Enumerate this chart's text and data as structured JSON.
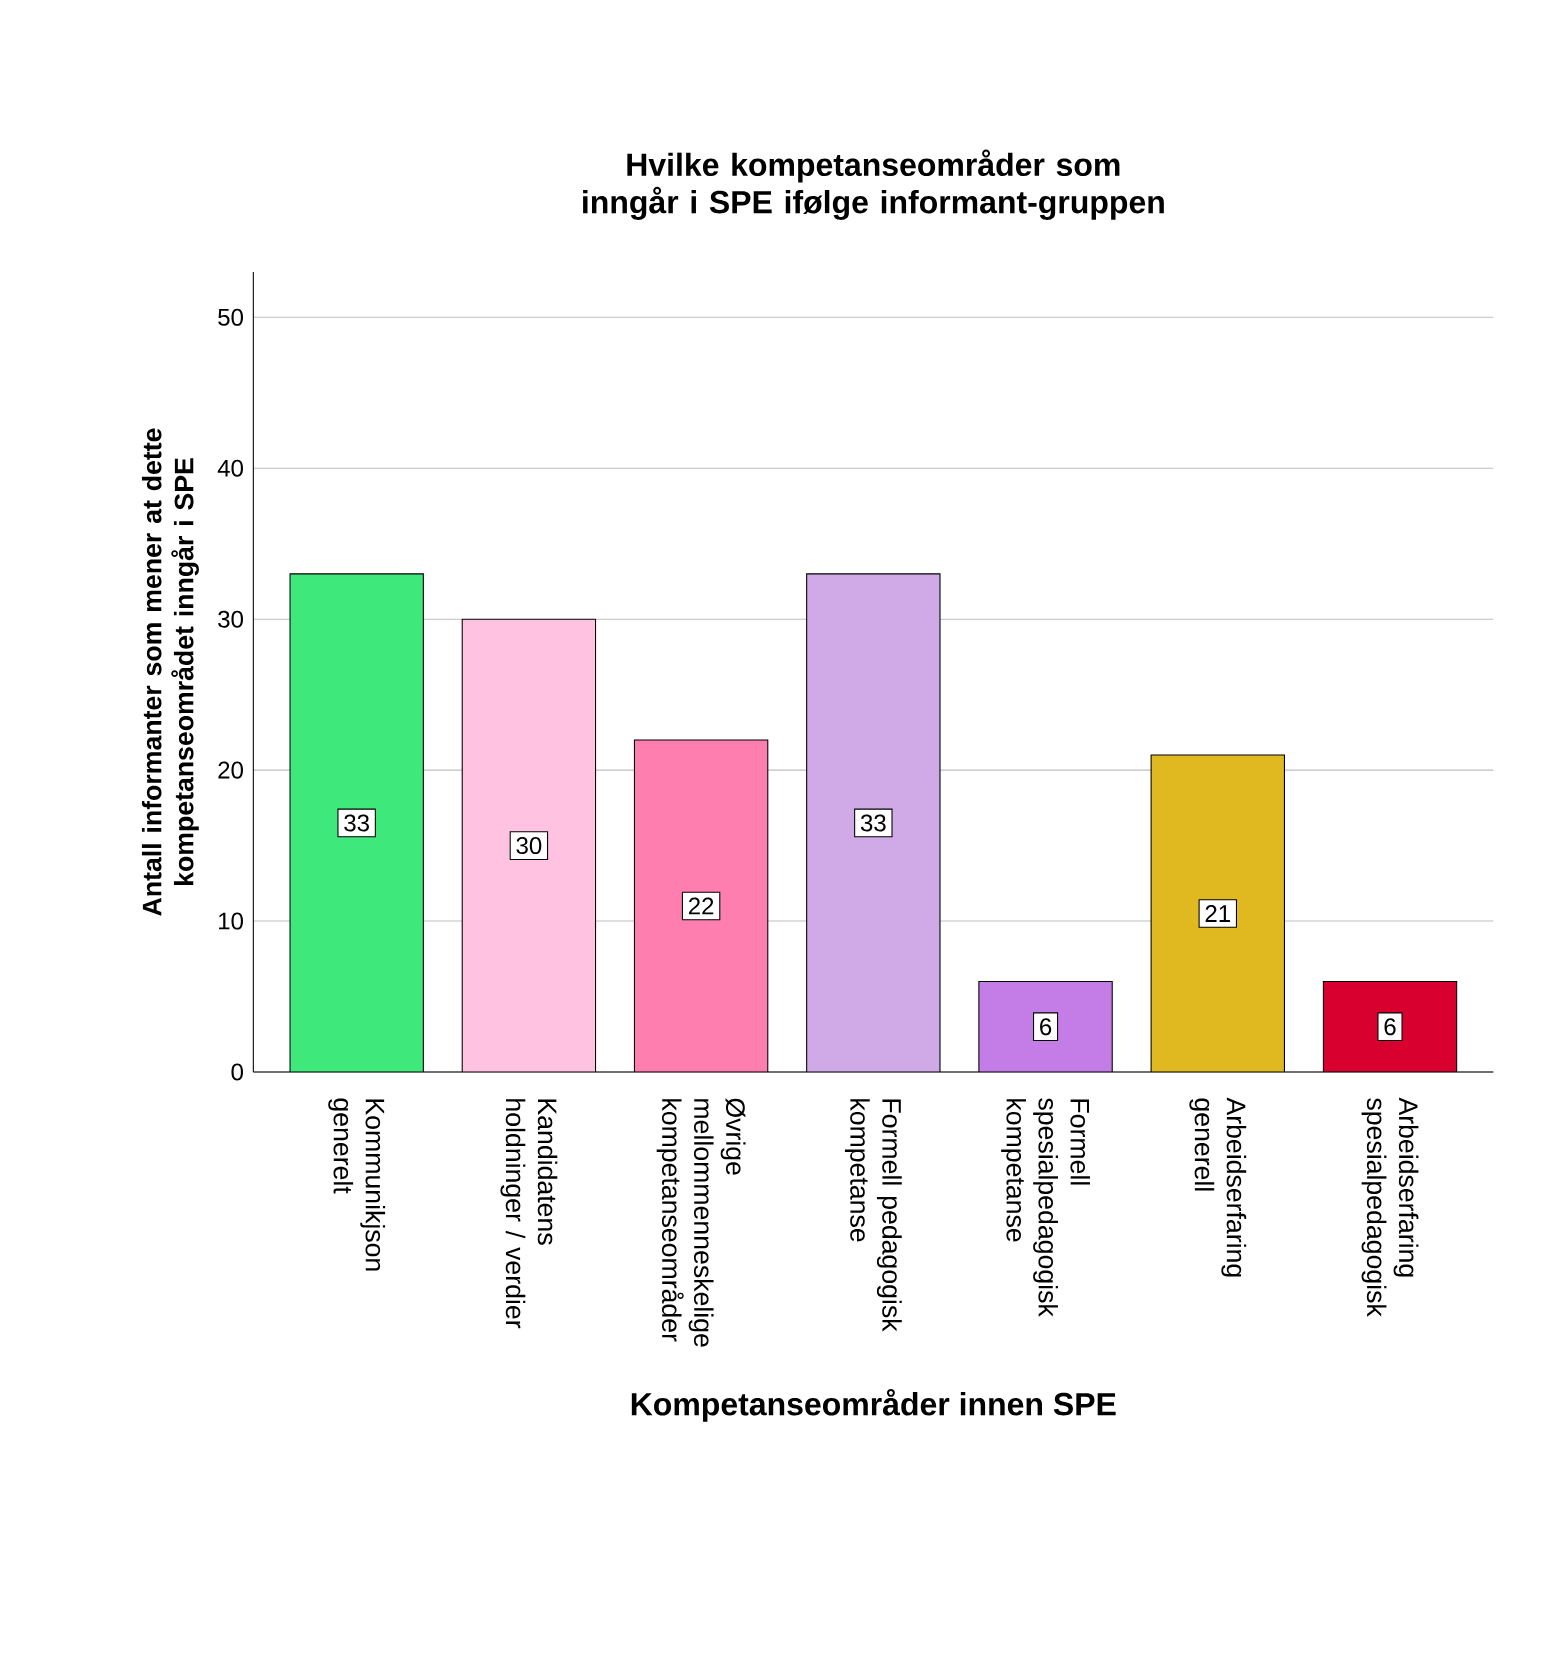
{
  "chart_data": {
    "type": "bar",
    "title": "Hvilke kompetanseområder som inngår i SPE ifølge informant-gruppen",
    "xlabel": "Kompetanseområder innen SPE",
    "ylabel": "Antall informanter som mener at dette kompetanseområdet inngår i SPE",
    "categories": [
      "Kommunikjson generelt",
      "Kandidatens holdninger / verdier",
      "Øvrige mellommenneskelige kompetanseområder",
      "Formell pedagogisk kompetanse",
      "Formell spesialpedagogisk kompetanse",
      "Arbeidserfaring generell",
      "Arbeidserfaring spesialpedagogisk"
    ],
    "values": [
      33,
      30,
      22,
      33,
      6,
      21,
      6
    ],
    "colors": [
      "#3fe87a",
      "#ffc2e0",
      "#ff7eb0",
      "#cfaae6",
      "#c47de6",
      "#e0b820",
      "#d8002e"
    ],
    "ylim": [
      0,
      53
    ],
    "yticks": [
      0,
      10,
      20,
      30,
      40,
      50
    ],
    "grid": "y",
    "data_labels": true
  }
}
